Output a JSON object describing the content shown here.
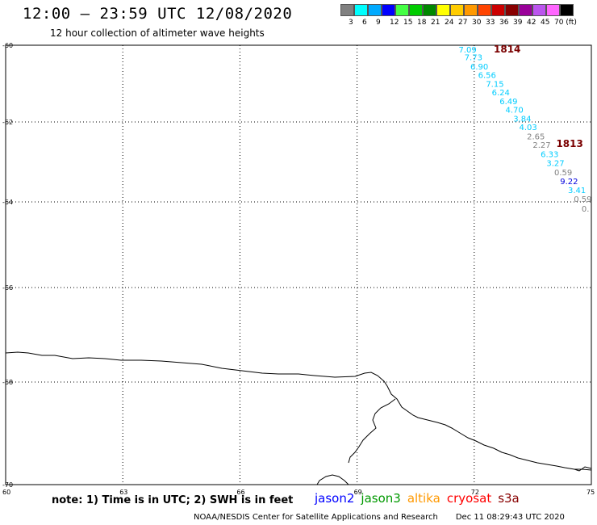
{
  "header": {
    "title": "12:00 – 23:59 UTC 12/08/2020",
    "subtitle": "12 hour collection of altimeter wave heights"
  },
  "scale": {
    "colors": [
      "#808080",
      "#00ffff",
      "#00aaff",
      "#0000ff",
      "#44ff44",
      "#00cc00",
      "#008800",
      "#ffff00",
      "#ffcc00",
      "#ff9900",
      "#ff4400",
      "#cc0000",
      "#880000",
      "#990099",
      "#bb55ee",
      "#ff66ff",
      "#000000"
    ],
    "labels": [
      "3",
      "6",
      "9",
      "12",
      "15",
      "18",
      "21",
      "24",
      "27",
      "30",
      "33",
      "36",
      "39",
      "42",
      "45",
      "70 (ft)"
    ]
  },
  "axes": {
    "lat_labels": [
      {
        "lat": -60,
        "text": "-60"
      },
      {
        "lat": -62,
        "text": "-62"
      },
      {
        "lat": -64,
        "text": "-64"
      },
      {
        "lat": -66,
        "text": "-66"
      },
      {
        "lat": -68,
        "text": "-68"
      },
      {
        "lat": -70,
        "text": "-70"
      }
    ],
    "lon_labels": [
      {
        "lon": 60,
        "text": "60"
      },
      {
        "lon": 63,
        "text": "63"
      },
      {
        "lon": 66,
        "text": "66"
      },
      {
        "lon": 69,
        "text": "69"
      },
      {
        "lon": 72,
        "text": "72"
      },
      {
        "lon": 75,
        "text": "75"
      }
    ],
    "grid_lons": [
      63,
      66,
      69,
      72
    ],
    "grid_lats": [
      -62,
      -64,
      -66,
      -68
    ]
  },
  "passes": [
    {
      "label": "1814",
      "lon": 72.5,
      "lat": -60.1
    },
    {
      "label": "1813",
      "lon": 74.1,
      "lat": -62.55
    }
  ],
  "observations": [
    {
      "text": "7.09",
      "lon": 71.6,
      "lat": -60.1,
      "color": "#00ccff"
    },
    {
      "text": "7.73",
      "lon": 71.75,
      "lat": -60.3,
      "color": "#00ccff"
    },
    {
      "text": "6.90",
      "lon": 71.9,
      "lat": -60.55,
      "color": "#00ccff"
    },
    {
      "text": "6.56",
      "lon": 72.1,
      "lat": -60.77,
      "color": "#00ccff"
    },
    {
      "text": "7.15",
      "lon": 72.3,
      "lat": -61.0,
      "color": "#00ccff"
    },
    {
      "text": "6.24",
      "lon": 72.45,
      "lat": -61.22,
      "color": "#00ccff"
    },
    {
      "text": "6.49",
      "lon": 72.65,
      "lat": -61.45,
      "color": "#00ccff"
    },
    {
      "text": "4.70",
      "lon": 72.8,
      "lat": -61.67,
      "color": "#00ccff"
    },
    {
      "text": "3.84",
      "lon": 73.0,
      "lat": -61.9,
      "color": "#00ccff"
    },
    {
      "text": "4.03",
      "lon": 73.15,
      "lat": -62.12,
      "color": "#00ccff"
    },
    {
      "text": "2.65",
      "lon": 73.35,
      "lat": -62.35,
      "color": "#808080"
    },
    {
      "text": "2.27",
      "lon": 73.5,
      "lat": -62.57,
      "color": "#808080"
    },
    {
      "text": "6.33",
      "lon": 73.7,
      "lat": -62.8,
      "color": "#00ccff"
    },
    {
      "text": "3.27",
      "lon": 73.85,
      "lat": -63.02,
      "color": "#00ccff"
    },
    {
      "text": "0.59",
      "lon": 74.05,
      "lat": -63.25,
      "color": "#808080"
    },
    {
      "text": "9.22",
      "lon": 74.2,
      "lat": -63.47,
      "color": "#0000dd"
    },
    {
      "text": "3.41",
      "lon": 74.4,
      "lat": -63.7,
      "color": "#00ccff"
    },
    {
      "text": "0.59",
      "lon": 74.55,
      "lat": -63.92,
      "color": "#808080"
    },
    {
      "text": "0.",
      "lon": 74.75,
      "lat": -64.15,
      "color": "#808080"
    }
  ],
  "note": "note: 1) Time is in UTC; 2) SWH is in feet",
  "satellites": [
    {
      "name": "jason2",
      "color": "#0000ff"
    },
    {
      "name": "jason3",
      "color": "#009900"
    },
    {
      "name": "altika",
      "color": "#ff9900"
    },
    {
      "name": "cryosat",
      "color": "#ff0000"
    },
    {
      "name": "s3a",
      "color": "#880000"
    }
  ],
  "footer": {
    "credit": "NOAA/NESDIS Center for Satellite Applications and Research",
    "timestamp": "Dec 11 08:29:43 UTC 2020"
  }
}
